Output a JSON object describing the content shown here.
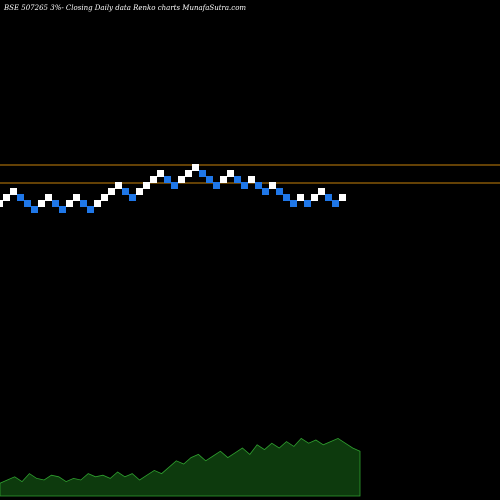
{
  "header": {
    "symbol": "BSE 507265",
    "box_pct": "3%",
    "tail": "- Closing Daily data",
    "brand": "Renko charts MunafaSutra.com"
  },
  "colors": {
    "background": "#000000",
    "up_brick": "#ffffff",
    "down_brick": "#1f77e8",
    "level_line": "#c8820a",
    "volume_fill": "#0d3a0d",
    "volume_line": "#2fa02f"
  },
  "chart_data": {
    "type": "renko",
    "title": "BSE 507265 3%- Closing Daily data Renko charts MunafaSutra.com",
    "box_size_pct": 3,
    "grid": false,
    "bricks": [
      {
        "dir": "up",
        "level": 1
      },
      {
        "dir": "up",
        "level": 2
      },
      {
        "dir": "up",
        "level": 3
      },
      {
        "dir": "down",
        "level": 2
      },
      {
        "dir": "down",
        "level": 1
      },
      {
        "dir": "down",
        "level": 0
      },
      {
        "dir": "up",
        "level": 1
      },
      {
        "dir": "up",
        "level": 2
      },
      {
        "dir": "down",
        "level": 1
      },
      {
        "dir": "down",
        "level": 0
      },
      {
        "dir": "up",
        "level": 1
      },
      {
        "dir": "up",
        "level": 2
      },
      {
        "dir": "down",
        "level": 1
      },
      {
        "dir": "down",
        "level": 0
      },
      {
        "dir": "up",
        "level": 1
      },
      {
        "dir": "up",
        "level": 2
      },
      {
        "dir": "up",
        "level": 3
      },
      {
        "dir": "up",
        "level": 4
      },
      {
        "dir": "down",
        "level": 3
      },
      {
        "dir": "down",
        "level": 2
      },
      {
        "dir": "up",
        "level": 3
      },
      {
        "dir": "up",
        "level": 4
      },
      {
        "dir": "up",
        "level": 5
      },
      {
        "dir": "up",
        "level": 6
      },
      {
        "dir": "down",
        "level": 5
      },
      {
        "dir": "down",
        "level": 4
      },
      {
        "dir": "up",
        "level": 5
      },
      {
        "dir": "up",
        "level": 6
      },
      {
        "dir": "up",
        "level": 7
      },
      {
        "dir": "down",
        "level": 6
      },
      {
        "dir": "down",
        "level": 5
      },
      {
        "dir": "down",
        "level": 4
      },
      {
        "dir": "up",
        "level": 5
      },
      {
        "dir": "up",
        "level": 6
      },
      {
        "dir": "down",
        "level": 5
      },
      {
        "dir": "down",
        "level": 4
      },
      {
        "dir": "up",
        "level": 5
      },
      {
        "dir": "down",
        "level": 4
      },
      {
        "dir": "down",
        "level": 3
      },
      {
        "dir": "up",
        "level": 4
      },
      {
        "dir": "down",
        "level": 3
      },
      {
        "dir": "down",
        "level": 2
      },
      {
        "dir": "down",
        "level": 1
      },
      {
        "dir": "up",
        "level": 2
      },
      {
        "dir": "down",
        "level": 1
      },
      {
        "dir": "up",
        "level": 2
      },
      {
        "dir": "up",
        "level": 3
      },
      {
        "dir": "down",
        "level": 2
      },
      {
        "dir": "down",
        "level": 1
      },
      {
        "dir": "up",
        "level": 2
      }
    ],
    "level_lines": [
      7.5,
      4.5
    ],
    "volume_profile": [
      8,
      10,
      12,
      9,
      14,
      11,
      10,
      13,
      12,
      9,
      11,
      10,
      14,
      12,
      13,
      11,
      15,
      12,
      14,
      10,
      13,
      16,
      14,
      18,
      22,
      20,
      24,
      26,
      22,
      25,
      28,
      24,
      27,
      30,
      26,
      32,
      29,
      33,
      30,
      34,
      31,
      36,
      33,
      35,
      32,
      34,
      36,
      33,
      30,
      28
    ]
  }
}
